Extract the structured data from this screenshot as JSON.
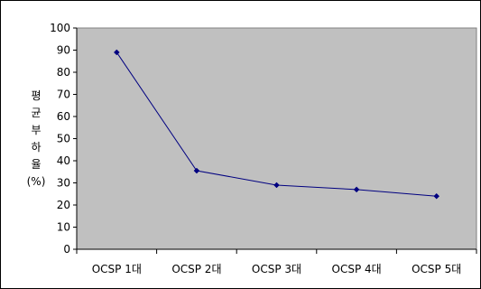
{
  "chart_data": {
    "type": "line",
    "categories": [
      "OCSP 1대",
      "OCSP 2대",
      "OCSP 3대",
      "OCSP 4대",
      "OCSP 5대"
    ],
    "series": [
      {
        "values": [
          89,
          35.5,
          29,
          27,
          24
        ]
      }
    ],
    "ylabel": "평균부하율(%)",
    "ylim": [
      0,
      100
    ],
    "yticks": [
      0,
      10,
      20,
      30,
      40,
      50,
      60,
      70,
      80,
      90,
      100
    ],
    "grid": false,
    "legend": "none",
    "colors": {
      "plot_background": "#c0c0c0",
      "line": "#000080",
      "marker": "#000080",
      "frame": "#000000"
    }
  }
}
